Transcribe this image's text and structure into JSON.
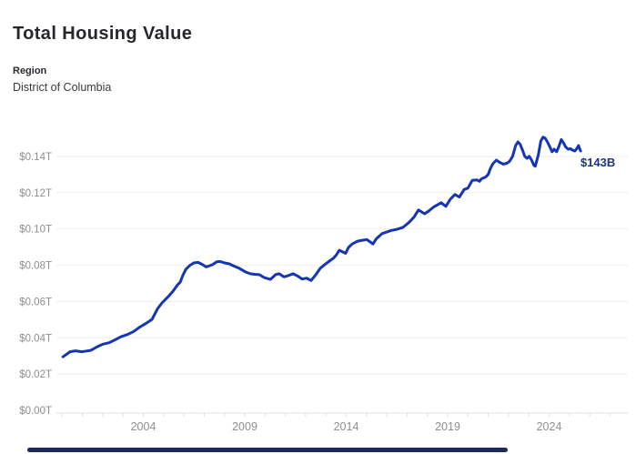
{
  "header": {
    "title": "Total Housing Value",
    "region_label": "Region",
    "region_value": "District of Columbia"
  },
  "chart_data": {
    "type": "line",
    "title": "Total Housing Value",
    "region": "District of Columbia",
    "unit": "trillions of dollars",
    "grid": "horizontal-on",
    "line_color": "#1535b2",
    "grid_color": "#ededed",
    "axis_color": "#e2e2e2",
    "tick_text_color": "#8e8e93",
    "end_label": "$143B",
    "end_label_color": "#1e3482",
    "x_ticks": [
      2004,
      2009,
      2014,
      2019,
      2024
    ],
    "x_range": [
      2000,
      2025.6
    ],
    "y_ticks": [
      {
        "label": "$0.00T",
        "value": 0
      },
      {
        "label": "$0.02T",
        "value": 20
      },
      {
        "label": "$0.04T",
        "value": 40
      },
      {
        "label": "$0.06T",
        "value": 60
      },
      {
        "label": "$0.08T",
        "value": 80
      },
      {
        "label": "$0.10T",
        "value": 100
      },
      {
        "label": "$0.12T",
        "value": 120
      },
      {
        "label": "$0.14T",
        "value": 140
      }
    ],
    "y_range_billions": [
      0,
      152
    ],
    "series": [
      {
        "name": "Total Housing Value ($B)",
        "points": [
          [
            2000.04,
            29.5
          ],
          [
            2000.39,
            32.3
          ],
          [
            2000.66,
            32.8
          ],
          [
            2000.97,
            32.3
          ],
          [
            2001.2,
            32.7
          ],
          [
            2001.42,
            33.1
          ],
          [
            2001.74,
            35.1
          ],
          [
            2002.01,
            36.5
          ],
          [
            2002.32,
            37.3
          ],
          [
            2002.63,
            39.0
          ],
          [
            2002.9,
            40.6
          ],
          [
            2003.22,
            41.8
          ],
          [
            2003.53,
            43.5
          ],
          [
            2003.8,
            45.7
          ],
          [
            2004.11,
            47.8
          ],
          [
            2004.43,
            50.2
          ],
          [
            2004.7,
            56.0
          ],
          [
            2004.92,
            59.2
          ],
          [
            2005.23,
            62.7
          ],
          [
            2005.46,
            65.7
          ],
          [
            2005.68,
            69.1
          ],
          [
            2005.82,
            70.7
          ],
          [
            2005.95,
            74.5
          ],
          [
            2006.1,
            77.8
          ],
          [
            2006.3,
            80.0
          ],
          [
            2006.49,
            81.3
          ],
          [
            2006.7,
            81.6
          ],
          [
            2006.9,
            80.5
          ],
          [
            2007.1,
            79.1
          ],
          [
            2007.4,
            80.3
          ],
          [
            2007.62,
            81.9
          ],
          [
            2007.79,
            82.1
          ],
          [
            2008.01,
            81.3
          ],
          [
            2008.24,
            80.8
          ],
          [
            2008.46,
            79.6
          ],
          [
            2008.73,
            78.3
          ],
          [
            2009.04,
            76.3
          ],
          [
            2009.27,
            75.3
          ],
          [
            2009.49,
            75.0
          ],
          [
            2009.72,
            74.8
          ],
          [
            2009.94,
            73.3
          ],
          [
            2010.26,
            72.2
          ],
          [
            2010.53,
            74.9
          ],
          [
            2010.7,
            75.3
          ],
          [
            2010.93,
            73.6
          ],
          [
            2011.15,
            74.3
          ],
          [
            2011.38,
            75.3
          ],
          [
            2011.6,
            74.1
          ],
          [
            2011.83,
            72.4
          ],
          [
            2012.05,
            72.9
          ],
          [
            2012.27,
            71.6
          ],
          [
            2012.5,
            74.8
          ],
          [
            2012.72,
            78.3
          ],
          [
            2012.94,
            80.4
          ],
          [
            2013.17,
            82.3
          ],
          [
            2013.39,
            84.1
          ],
          [
            2013.52,
            85.8
          ],
          [
            2013.66,
            88.3
          ],
          [
            2013.84,
            87.3
          ],
          [
            2013.97,
            86.6
          ],
          [
            2014.11,
            89.8
          ],
          [
            2014.29,
            91.7
          ],
          [
            2014.56,
            93.3
          ],
          [
            2014.78,
            93.8
          ],
          [
            2015.01,
            94.2
          ],
          [
            2015.19,
            92.8
          ],
          [
            2015.32,
            91.7
          ],
          [
            2015.5,
            94.8
          ],
          [
            2015.77,
            97.5
          ],
          [
            2015.99,
            98.3
          ],
          [
            2016.22,
            99.2
          ],
          [
            2016.49,
            99.8
          ],
          [
            2016.8,
            100.9
          ],
          [
            2017.07,
            103.4
          ],
          [
            2017.34,
            106.5
          ],
          [
            2017.56,
            110.5
          ],
          [
            2017.87,
            108.4
          ],
          [
            2018.1,
            110.2
          ],
          [
            2018.32,
            112.2
          ],
          [
            2018.68,
            114.5
          ],
          [
            2018.91,
            112.5
          ],
          [
            2019.13,
            116.4
          ],
          [
            2019.36,
            119.0
          ],
          [
            2019.58,
            117.6
          ],
          [
            2019.81,
            121.8
          ],
          [
            2020.0,
            122.6
          ],
          [
            2020.21,
            126.8
          ],
          [
            2020.44,
            127.1
          ],
          [
            2020.57,
            126.3
          ],
          [
            2020.66,
            127.6
          ],
          [
            2020.89,
            128.8
          ],
          [
            2021.0,
            130.1
          ],
          [
            2021.11,
            133.5
          ],
          [
            2021.23,
            136.0
          ],
          [
            2021.4,
            138.0
          ],
          [
            2021.56,
            136.8
          ],
          [
            2021.74,
            135.8
          ],
          [
            2021.9,
            136.2
          ],
          [
            2022.05,
            137.3
          ],
          [
            2022.2,
            140.1
          ],
          [
            2022.35,
            146.0
          ],
          [
            2022.46,
            148.0
          ],
          [
            2022.57,
            146.8
          ],
          [
            2022.69,
            143.5
          ],
          [
            2022.8,
            140.1
          ],
          [
            2022.91,
            139.0
          ],
          [
            2023.02,
            140.1
          ],
          [
            2023.14,
            138.0
          ],
          [
            2023.25,
            135.1
          ],
          [
            2023.32,
            134.6
          ],
          [
            2023.47,
            141.0
          ],
          [
            2023.59,
            148.5
          ],
          [
            2023.7,
            150.7
          ],
          [
            2023.8,
            150.2
          ],
          [
            2023.92,
            148.0
          ],
          [
            2024.04,
            145.2
          ],
          [
            2024.15,
            142.6
          ],
          [
            2024.25,
            144.0
          ],
          [
            2024.37,
            142.6
          ],
          [
            2024.49,
            145.7
          ],
          [
            2024.6,
            149.3
          ],
          [
            2024.7,
            147.7
          ],
          [
            2024.82,
            145.2
          ],
          [
            2024.94,
            144.0
          ],
          [
            2025.05,
            144.3
          ],
          [
            2025.15,
            143.5
          ],
          [
            2025.27,
            143.0
          ],
          [
            2025.38,
            144.6
          ],
          [
            2025.45,
            146.0
          ],
          [
            2025.55,
            143.0
          ]
        ]
      }
    ]
  },
  "footer": {
    "scrubber_color": "#1c2a5f"
  }
}
